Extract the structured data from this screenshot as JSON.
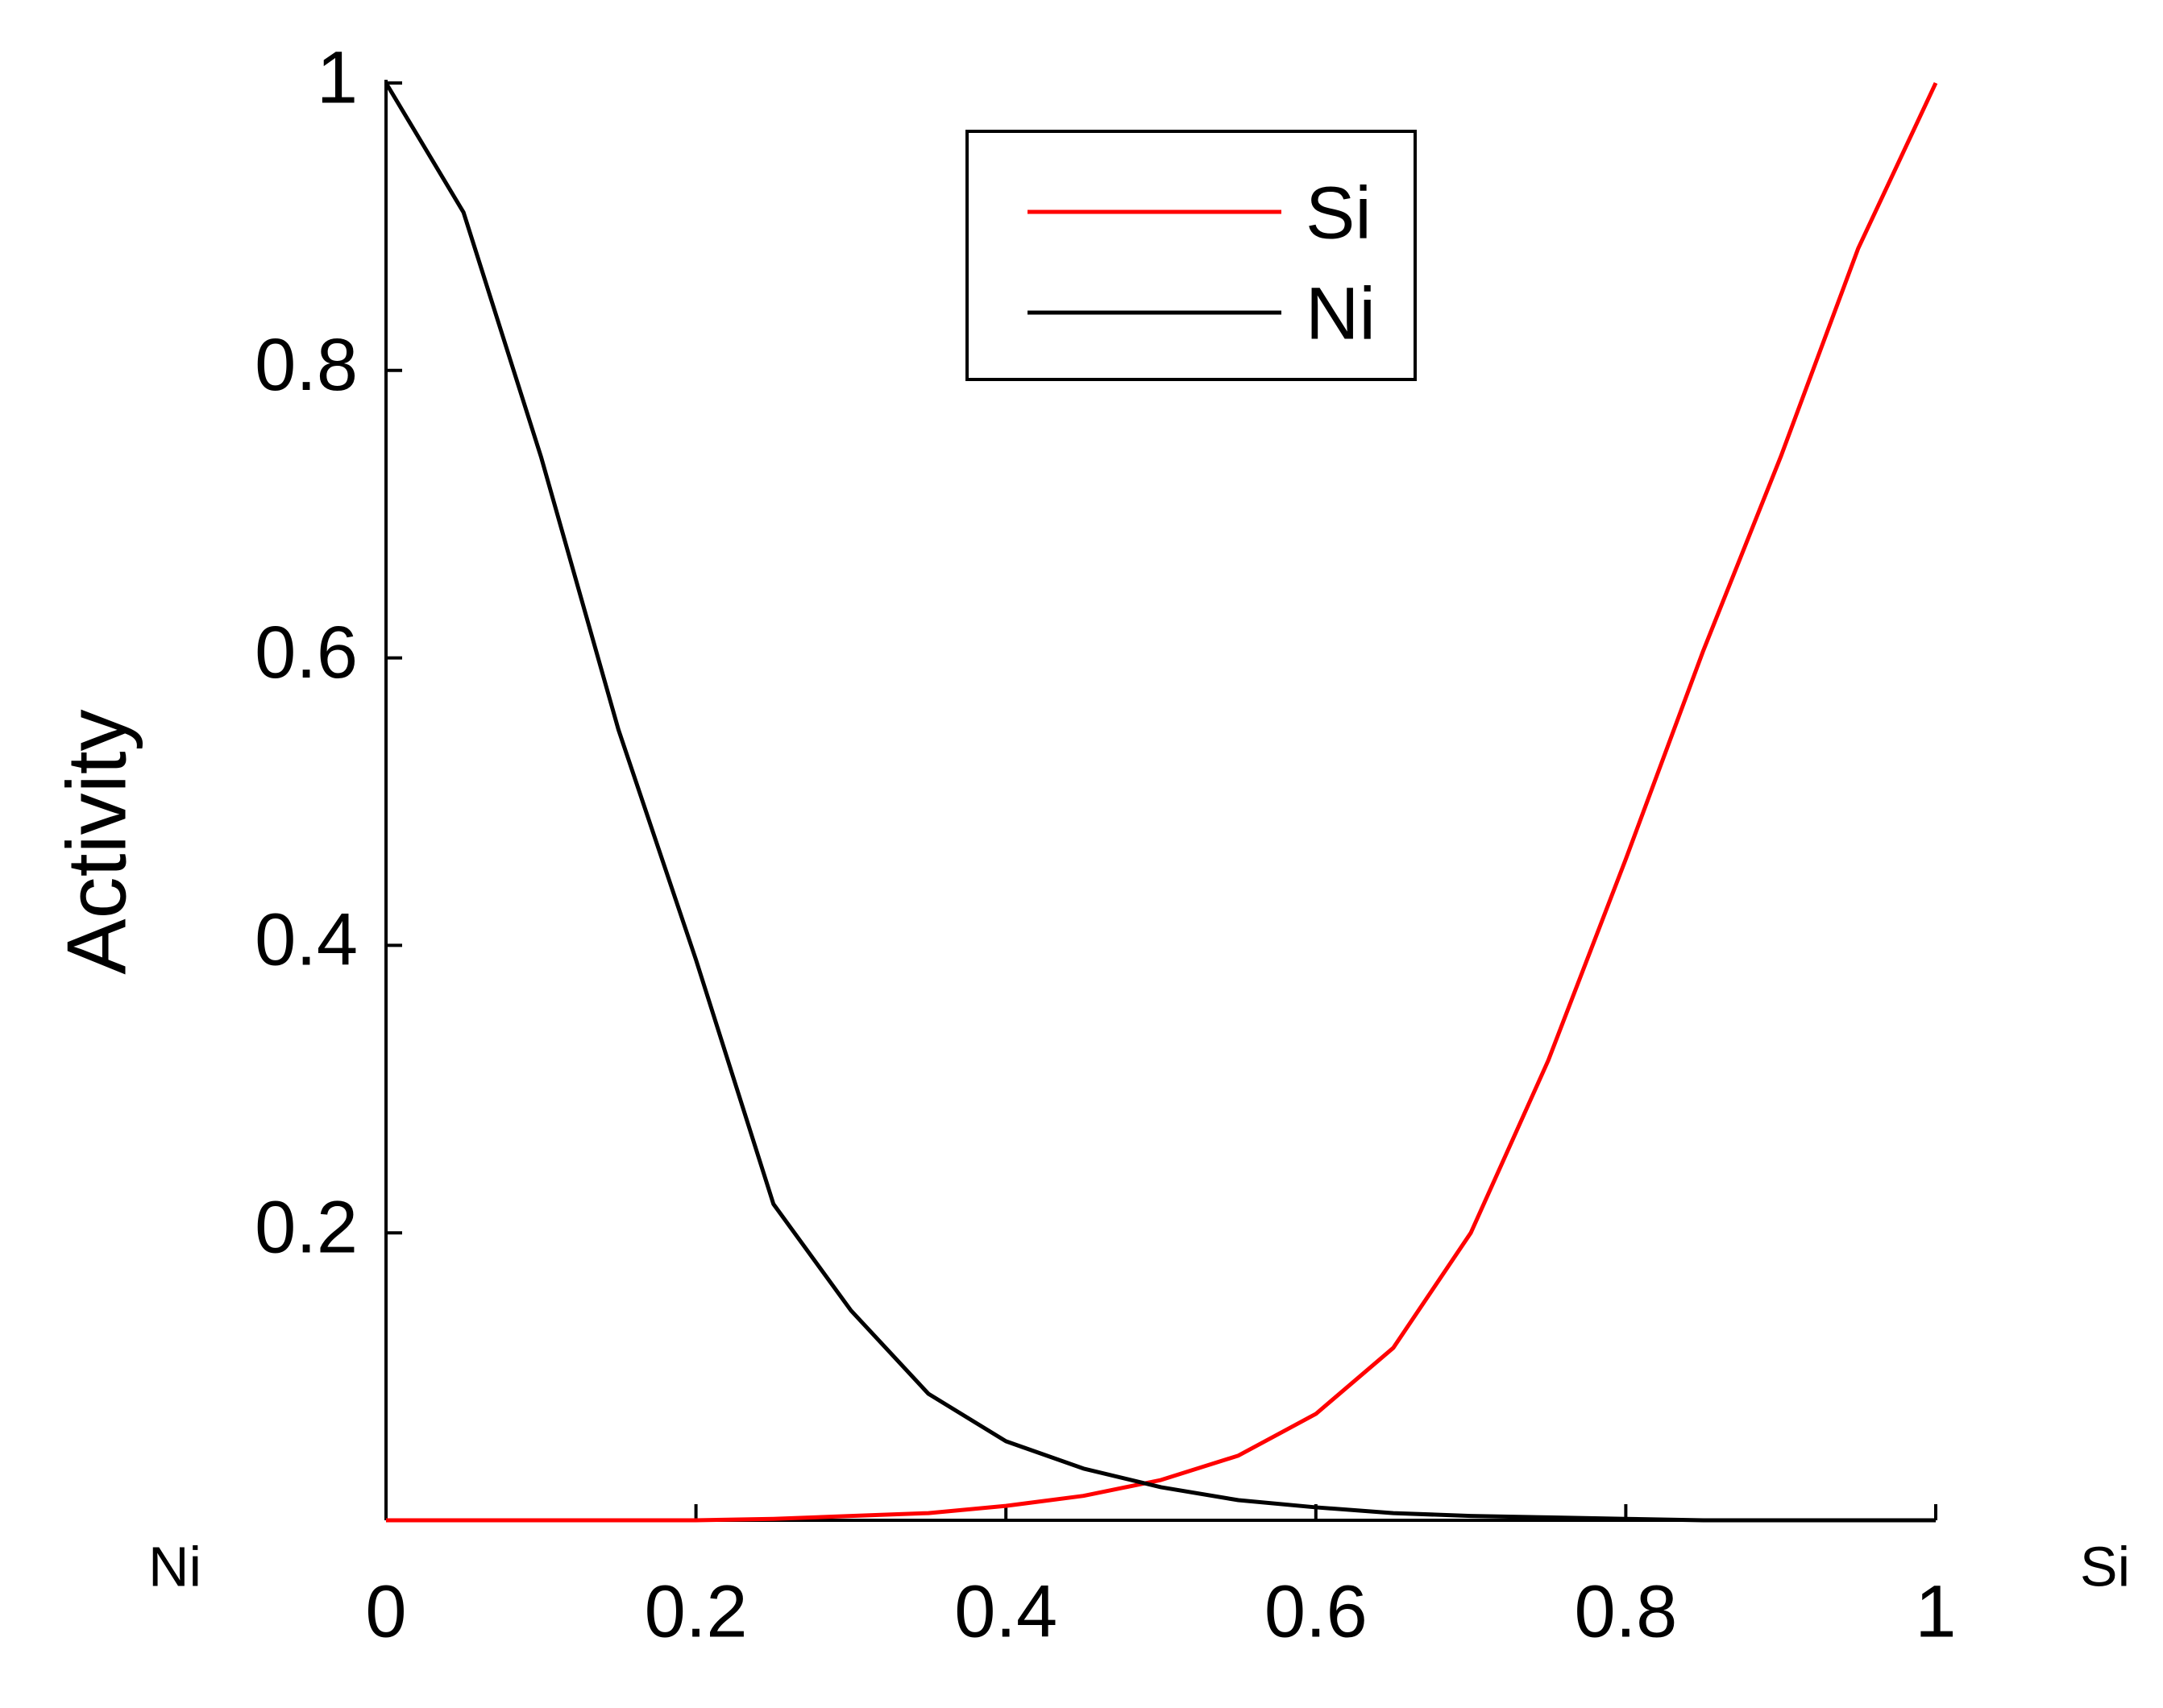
{
  "chart_data": {
    "type": "line",
    "y_label": "Activity",
    "annotations": [
      "Ni",
      "Si"
    ],
    "x": [
      0,
      0.05,
      0.1,
      0.15,
      0.2,
      0.25,
      0.3,
      0.35,
      0.4,
      0.45,
      0.5,
      0.55,
      0.6,
      0.65,
      0.7,
      0.75,
      0.8,
      0.85,
      0.9,
      0.95,
      1
    ],
    "series": [
      {
        "name": "Si",
        "color": "#ff0000",
        "values": [
          0,
          0,
          0,
          0,
          0,
          0.001,
          0.003,
          0.005,
          0.01,
          0.017,
          0.028,
          0.045,
          0.074,
          0.12,
          0.2,
          0.32,
          0.46,
          0.605,
          0.74,
          0.885,
          1
        ]
      },
      {
        "name": "Ni",
        "color": "#000000",
        "values": [
          1,
          0.91,
          0.74,
          0.55,
          0.39,
          0.22,
          0.146,
          0.088,
          0.055,
          0.036,
          0.023,
          0.014,
          0.009,
          0.005,
          0.003,
          0.002,
          0.001,
          0,
          0,
          0,
          0
        ]
      }
    ],
    "xlim": [
      0,
      1
    ],
    "ylim": [
      0,
      1
    ],
    "xticks": [
      0,
      0.2,
      0.4,
      0.6,
      0.8,
      1
    ],
    "yticks": [
      0.2,
      0.4,
      0.6,
      0.8,
      1
    ],
    "grid": false,
    "legend": "top"
  }
}
